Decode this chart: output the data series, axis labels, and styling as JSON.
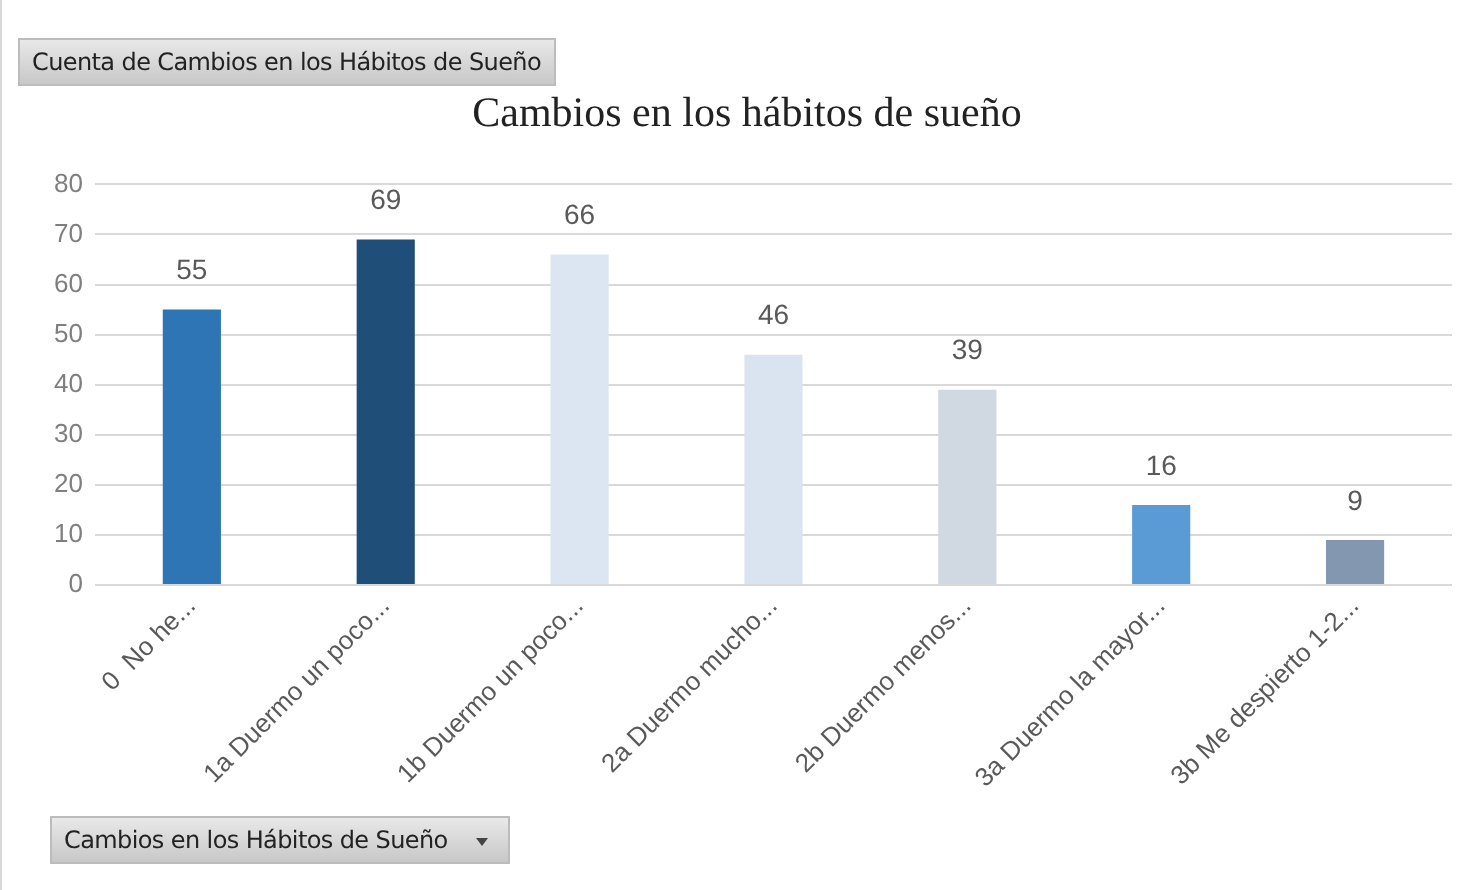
{
  "chart_data": {
    "type": "bar",
    "title": "Cambios en los hábitos de sueño",
    "categories": [
      "0  No he...",
      "1a Duermo un poco...",
      "1b Duermo un poco...",
      "2a Duermo mucho...",
      "2b Duermo menos...",
      "3a Duermo la mayor...",
      "3b Me despierto 1-2..."
    ],
    "values": [
      55,
      69,
      66,
      46,
      39,
      16,
      9
    ],
    "colors": [
      "#2e75b6",
      "#1f4e79",
      "#dce6f2",
      "#dae3f0",
      "#d0d8e2",
      "#5b9bd5",
      "#8497b0"
    ],
    "ylim": [
      0,
      80
    ],
    "yticks": [
      0,
      10,
      20,
      30,
      40,
      50,
      60,
      70,
      80
    ],
    "grid": "y",
    "legend": false,
    "data_labels": true,
    "annotations": [
      "Cuenta de Cambios en los Hábitos de Sueño",
      "Cambios en los Hábitos de Sueño"
    ]
  }
}
